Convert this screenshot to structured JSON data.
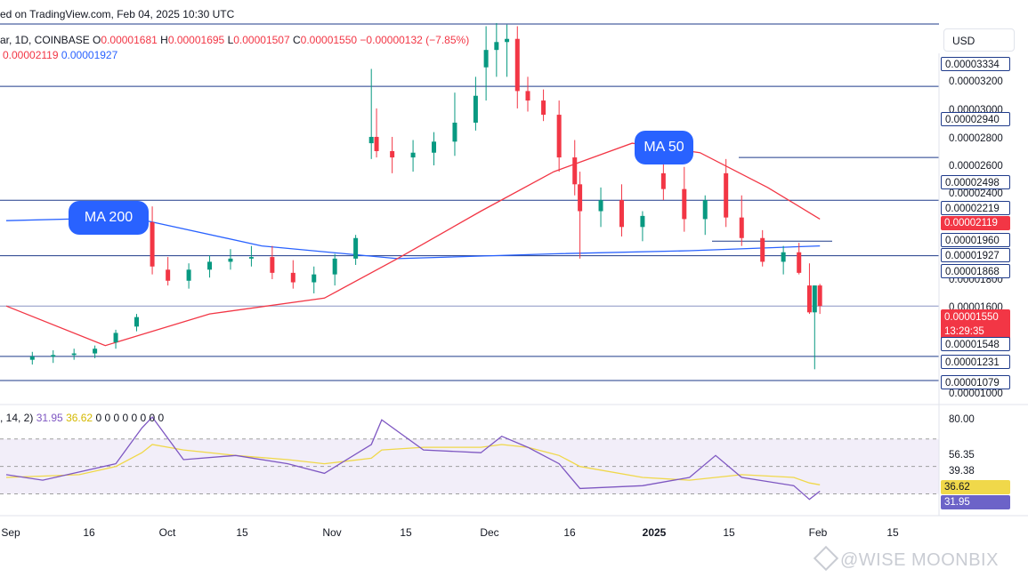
{
  "header": {
    "published": "ed on TradingView.com, Feb 04, 2025 10:30 UTC",
    "symbol": "ar, 1D, COINBASE",
    "o_label": "O",
    "o_value": "0.00001681",
    "h_label": "H",
    "h_value": "0.00001695",
    "l_label": "L",
    "l_value": "0.00001507",
    "c_label": "C",
    "c_value": "0.00001550",
    "change": "−0.00000132 (−7.85%)",
    "ma50_value": "0.00002119",
    "ma200_value": "0.00001927",
    "currency": "USD"
  },
  "annotations": {
    "ma200": "MA 200",
    "ma50": "MA 50"
  },
  "price_axis": {
    "ticks": [
      "0.00003200",
      "0.00003000",
      "0.00002800",
      "0.00002600",
      "0.00002400",
      "0.00001800",
      "0.00001600",
      "0.00001000"
    ],
    "labels": [
      {
        "text": "0.00003334",
        "style": "box"
      },
      {
        "text": "0.00002940",
        "style": "box"
      },
      {
        "text": "0.00002498",
        "style": "box"
      },
      {
        "text": "0.00002219",
        "style": "box"
      },
      {
        "text": "0.00002119",
        "style": "red"
      },
      {
        "text": "0.00001960",
        "style": "box"
      },
      {
        "text": "0.00001927",
        "style": "box"
      },
      {
        "text": "0.00001868",
        "style": "box"
      },
      {
        "text": "0.00001550",
        "style": "current",
        "sub": "13:29:35"
      },
      {
        "text": "0.00001548",
        "style": "box"
      },
      {
        "text": "0.00001231",
        "style": "box"
      },
      {
        "text": "0.00001079",
        "style": "box"
      }
    ]
  },
  "rsi": {
    "legend_prefix": ", 14, 2)",
    "rsi_value": "31.95",
    "ma_value": "36.62",
    "zeros": "0 0 0 0 0 0 0 0",
    "ticks": [
      "80.00",
      "56.35",
      "39.38"
    ],
    "label_ma": "36.62",
    "label_rsi": "31.95"
  },
  "time_axis": [
    {
      "label": "Sep",
      "bold": false
    },
    {
      "label": "16",
      "bold": false
    },
    {
      "label": "Oct",
      "bold": false
    },
    {
      "label": "15",
      "bold": false
    },
    {
      "label": "Nov",
      "bold": false
    },
    {
      "label": "15",
      "bold": false
    },
    {
      "label": "Dec",
      "bold": false
    },
    {
      "label": "16",
      "bold": false
    },
    {
      "label": "2025",
      "bold": true
    },
    {
      "label": "15",
      "bold": false
    },
    {
      "label": "Feb",
      "bold": false
    },
    {
      "label": "15",
      "bold": false
    }
  ],
  "watermark": "@WISE MOONBIX",
  "colors": {
    "up": "#089981",
    "down": "#f23645",
    "ma200": "#2962ff",
    "ma50": "#f23645",
    "level": "#1e3a8a",
    "rsi": "#7e57c2",
    "rsi_ma": "#f0d84a"
  },
  "chart_data": {
    "type": "candlestick",
    "title": "1D, COINBASE",
    "ylim": [
      1e-05,
      3.334e-05
    ],
    "horizontal_levels": [
      3.334e-05,
      2.94e-05,
      2.219e-05,
      1.868e-05,
      1.55e-05,
      1.231e-05,
      1.079e-05
    ],
    "x": [
      "Sep 06",
      "Sep 10",
      "Sep 14",
      "Sep 18",
      "Sep 22",
      "Sep 26",
      "Sep 29",
      "Oct 02",
      "Oct 06",
      "Oct 10",
      "Oct 14",
      "Oct 18",
      "Oct 22",
      "Oct 26",
      "Oct 30",
      "Nov 03",
      "Nov 07",
      "Nov 10",
      "Nov 11",
      "Nov 14",
      "Nov 18",
      "Nov 22",
      "Nov 26",
      "Nov 30",
      "Dec 02",
      "Dec 04",
      "Dec 06",
      "Dec 08",
      "Dec 10",
      "Dec 13",
      "Dec 16",
      "Dec 19",
      "Dec 20",
      "Dec 24",
      "Dec 28",
      "Jan 01",
      "Jan 05",
      "Jan 09",
      "Jan 13",
      "Jan 17",
      "Jan 20",
      "Jan 24",
      "Jan 28",
      "Jan 31",
      "Feb 02",
      "Feb 03",
      "Feb 04"
    ],
    "series": [
      {
        "name": "open",
        "values": [
          1.21e-05,
          1.23e-05,
          1.24e-05,
          1.25e-05,
          1.32e-05,
          1.42e-05,
          2.08e-05,
          1.78e-05,
          1.71e-05,
          1.78e-05,
          1.83e-05,
          1.85e-05,
          1.86e-05,
          1.76e-05,
          1.7e-05,
          1.75e-05,
          1.85e-05,
          2.58e-05,
          2.62e-05,
          2.53e-05,
          2.49e-05,
          2.52e-05,
          2.59e-05,
          2.71e-05,
          3.06e-05,
          3.17e-05,
          3.22e-05,
          3.24e-05,
          2.91e-05,
          2.85e-05,
          2.76e-05,
          2.49e-05,
          2.32e-05,
          2.15e-05,
          2.22e-05,
          2.05e-05,
          2.39e-05,
          2.29e-05,
          2.1e-05,
          2.39e-05,
          2.11e-05,
          1.98e-05,
          1.83e-05,
          1.89e-05,
          1.68e-05,
          1.51e-05,
          1.68e-05
        ]
      },
      {
        "name": "high",
        "values": [
          1.26e-05,
          1.27e-05,
          1.28e-05,
          1.3e-05,
          1.4e-05,
          1.5e-05,
          2.18e-05,
          1.86e-05,
          1.82e-05,
          1.87e-05,
          1.91e-05,
          1.93e-05,
          1.93e-05,
          1.84e-05,
          1.8e-05,
          1.88e-05,
          2e-05,
          3.05e-05,
          2.8e-05,
          2.62e-05,
          2.6e-05,
          2.65e-05,
          2.9e-05,
          3e-05,
          3.32e-05,
          3.34e-05,
          3.33e-05,
          3.32e-05,
          3e-05,
          2.92e-05,
          2.85e-05,
          2.6e-05,
          2.4e-05,
          2.3e-05,
          2.32e-05,
          2.15e-05,
          2.48e-05,
          2.43e-05,
          2.25e-05,
          2.48e-05,
          2.25e-05,
          2.03e-05,
          1.93e-05,
          1.95e-05,
          1.82e-05,
          1.68e-05,
          1.69e-05
        ]
      },
      {
        "name": "low",
        "values": [
          1.18e-05,
          1.19e-05,
          1.21e-05,
          1.22e-05,
          1.28e-05,
          1.39e-05,
          1.75e-05,
          1.68e-05,
          1.66e-05,
          1.73e-05,
          1.78e-05,
          1.8e-05,
          1.72e-05,
          1.66e-05,
          1.63e-05,
          1.68e-05,
          1.81e-05,
          2.48e-05,
          2.49e-05,
          2.39e-05,
          2.4e-05,
          2.44e-05,
          2.5e-05,
          2.66e-05,
          2.85e-05,
          3e-05,
          3e-05,
          2.8e-05,
          2.78e-05,
          2.72e-05,
          2.4e-05,
          2.25e-05,
          1.85e-05,
          2.05e-05,
          1.99e-05,
          1.96e-05,
          2.22e-05,
          2.02e-05,
          2e-05,
          2.05e-05,
          1.93e-05,
          1.8e-05,
          1.75e-05,
          1.75e-05,
          1.5e-05,
          1.15e-05,
          1.5e-05
        ]
      },
      {
        "name": "close",
        "values": [
          1.23e-05,
          1.24e-05,
          1.25e-05,
          1.28e-05,
          1.38e-05,
          1.48e-05,
          1.8e-05,
          1.71e-05,
          1.78e-05,
          1.83e-05,
          1.85e-05,
          1.86e-05,
          1.76e-05,
          1.7e-05,
          1.75e-05,
          1.85e-05,
          1.98e-05,
          2.62e-05,
          2.53e-05,
          2.49e-05,
          2.52e-05,
          2.59e-05,
          2.71e-05,
          2.88e-05,
          3.17e-05,
          3.22e-05,
          3.24e-05,
          2.91e-05,
          2.85e-05,
          2.76e-05,
          2.49e-05,
          2.32e-05,
          2.15e-05,
          2.22e-05,
          2.05e-05,
          2.12e-05,
          2.29e-05,
          2.1e-05,
          2.22e-05,
          2.11e-05,
          1.98e-05,
          1.83e-05,
          1.89e-05,
          1.76e-05,
          1.51e-05,
          1.68e-05,
          1.55e-05
        ]
      }
    ],
    "ma50": {
      "x": [
        "Sep 01",
        "Sep 20",
        "Oct 10",
        "Nov 01",
        "Nov 15",
        "Dec 01",
        "Dec 15",
        "Dec 30",
        "Jan 12",
        "Jan 25",
        "Feb 04"
      ],
      "values": [
        1.55e-05,
        1.3e-05,
        1.5e-05,
        1.6e-05,
        1.85e-05,
        2.15e-05,
        2.4e-05,
        2.58e-05,
        2.52e-05,
        2.3e-05,
        2.1e-05
      ]
    },
    "ma200": {
      "x": [
        "Sep 01",
        "Sep 25",
        "Oct 20",
        "Nov 15",
        "Dec 15",
        "Jan 10",
        "Feb 04"
      ],
      "values": [
        2.09e-05,
        2.11e-05,
        1.93e-05,
        1.85e-05,
        1.88e-05,
        1.9e-05,
        1.93e-05
      ]
    },
    "rsi": {
      "ylim": [
        20,
        88
      ],
      "band": [
        30,
        70
      ],
      "x": [
        "Sep 01",
        "Sep 08",
        "Sep 15",
        "Sep 22",
        "Sep 27",
        "Sep 29",
        "Oct 05",
        "Oct 15",
        "Oct 25",
        "Nov 01",
        "Nov 10",
        "Nov 12",
        "Nov 20",
        "Dec 01",
        "Dec 05",
        "Dec 10",
        "Dec 16",
        "Dec 20",
        "Jan 01",
        "Jan 10",
        "Jan 15",
        "Jan 20",
        "Jan 30",
        "Feb 02",
        "Feb 04"
      ],
      "rsi_values": [
        44,
        40,
        46,
        52,
        78,
        86,
        55,
        58,
        52,
        45,
        66,
        84,
        62,
        60,
        72,
        64,
        52,
        34,
        36,
        42,
        58,
        42,
        36,
        26,
        31.95
      ],
      "ma_values": [
        42,
        43,
        44,
        50,
        60,
        66,
        62,
        58,
        55,
        52,
        56,
        62,
        64,
        64,
        66,
        64,
        58,
        50,
        42,
        40,
        42,
        44,
        42,
        38,
        36.62
      ]
    }
  }
}
